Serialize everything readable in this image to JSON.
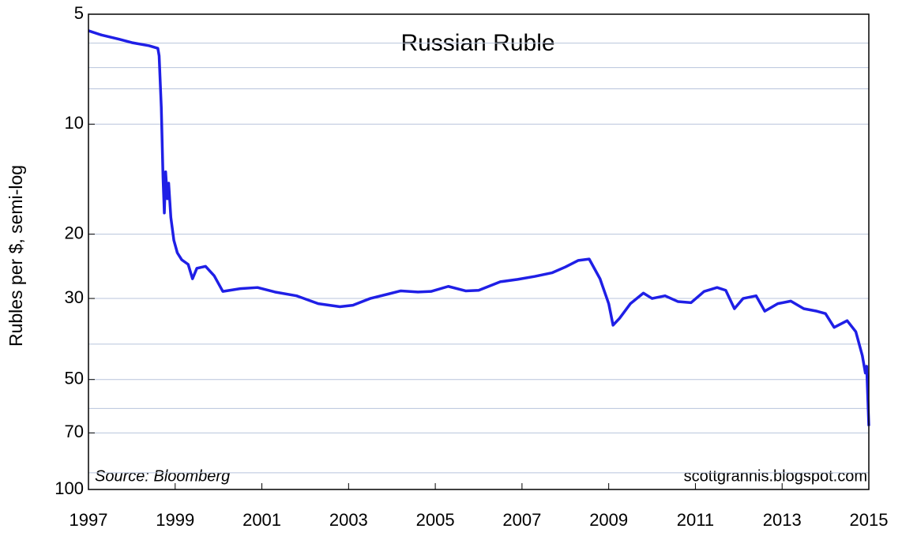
{
  "chart_data": {
    "type": "line",
    "title": "Russian Ruble",
    "y_label": "Rubles per $, semi-log",
    "annotations": [
      "Source:  Bloomberg",
      "scottgrannis.blogspot.com"
    ],
    "y_log": true,
    "y_inverted": true,
    "grid": true,
    "y_minor_gridlines": [
      6,
      7,
      8,
      40,
      60,
      90
    ],
    "xlim": [
      1997,
      2015
    ],
    "xticks": [
      1997,
      1999,
      2001,
      2003,
      2005,
      2007,
      2009,
      2011,
      2013,
      2015
    ],
    "ylim": [
      5,
      100
    ],
    "yticks": [
      5,
      10,
      20,
      30,
      50,
      70,
      100
    ],
    "x": [
      1997,
      1997.3,
      1997.7,
      1998,
      1998.4,
      1998.6,
      1998.63,
      1998.68,
      1998.72,
      1998.75,
      1998.78,
      1998.82,
      1998.85,
      1998.9,
      1998.97,
      1999.05,
      1999.15,
      1999.3,
      1999.4,
      1999.5,
      1999.7,
      1999.9,
      2000.1,
      2000.5,
      2000.9,
      2001.3,
      2001.8,
      2002.3,
      2002.8,
      2003.1,
      2003.5,
      2003.9,
      2004.2,
      2004.6,
      2004.9,
      2005.3,
      2005.7,
      2006.0,
      2006.5,
      2006.9,
      2007.3,
      2007.7,
      2008.0,
      2008.3,
      2008.55,
      2008.8,
      2009.0,
      2009.1,
      2009.25,
      2009.5,
      2009.8,
      2010.0,
      2010.3,
      2010.6,
      2010.9,
      2011.2,
      2011.5,
      2011.7,
      2011.9,
      2012.1,
      2012.4,
      2012.6,
      2012.9,
      2013.2,
      2013.5,
      2013.8,
      2014.0,
      2014.2,
      2014.5,
      2014.7,
      2014.85,
      2014.92,
      2014.95,
      2015.0
    ],
    "series": [
      {
        "name": "Russian Ruble",
        "color": "#1f1fe6",
        "values": [
          5.55,
          5.7,
          5.85,
          5.98,
          6.1,
          6.2,
          6.5,
          9,
          14,
          17.5,
          13.5,
          16,
          14.5,
          18,
          20.8,
          22.5,
          23.5,
          24.2,
          26.5,
          24.8,
          24.5,
          26,
          28.7,
          28.2,
          28,
          28.8,
          29.5,
          31,
          31.6,
          31.3,
          30,
          29.2,
          28.6,
          28.8,
          28.7,
          27.8,
          28.6,
          28.5,
          27,
          26.6,
          26.1,
          25.5,
          24.6,
          23.6,
          23.4,
          26.5,
          31,
          35.5,
          34,
          31,
          29,
          30,
          29.5,
          30.6,
          30.8,
          28.7,
          28,
          28.5,
          32,
          30,
          29.5,
          32.5,
          31,
          30.5,
          32,
          32.5,
          33,
          36,
          34.5,
          37,
          43,
          48,
          46,
          67
        ]
      }
    ]
  }
}
